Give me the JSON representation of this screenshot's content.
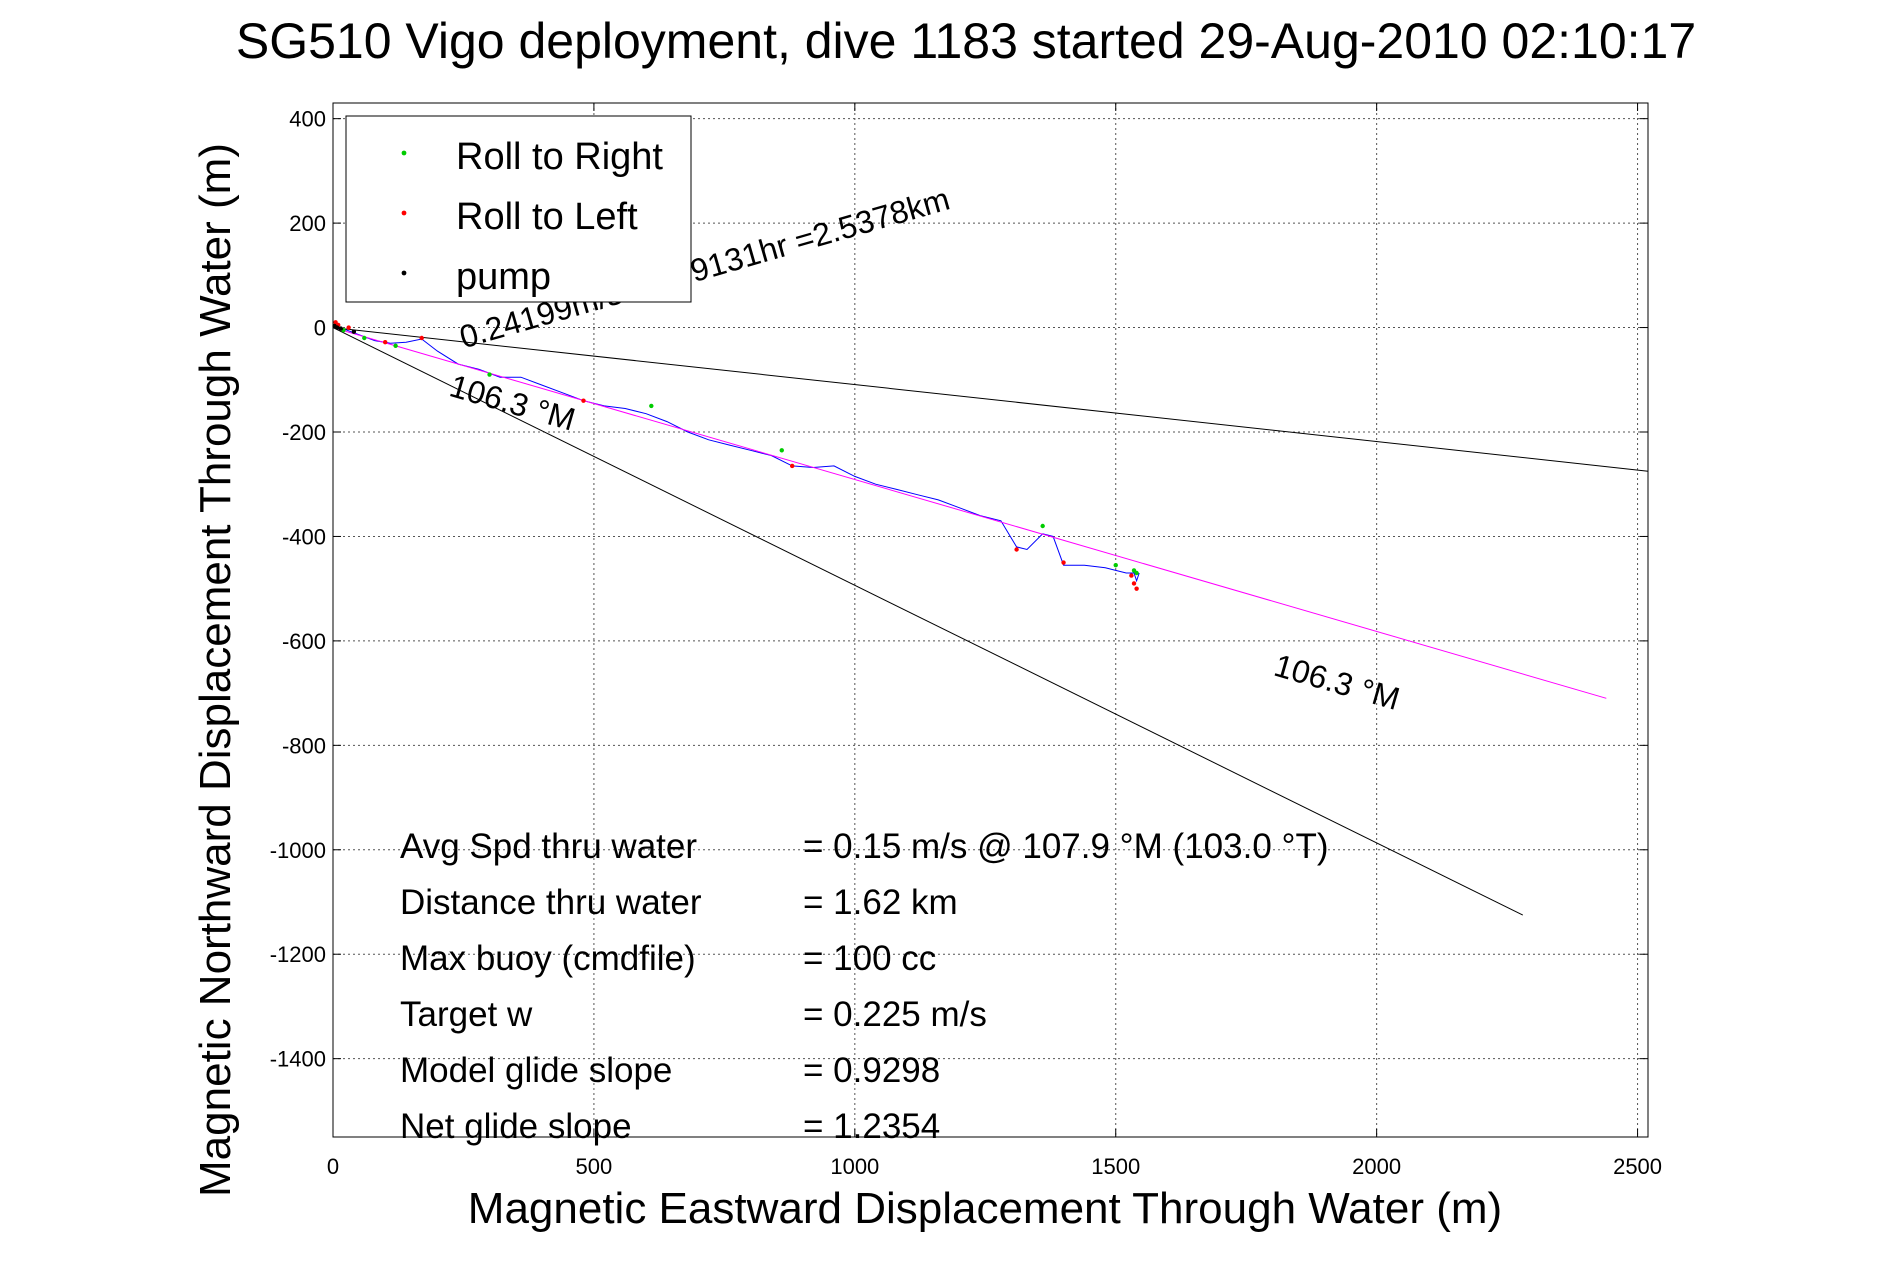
{
  "chart_data": {
    "type": "scatter",
    "title": "SG510 Vigo deployment, dive 1183 started 29-Aug-2010 02:10:17",
    "xlabel": "Magnetic Eastward Displacement Through Water (m)",
    "ylabel": "Magnetic Northward Displacement Through Water (m)",
    "xlim": [
      0,
      2520
    ],
    "ylim": [
      -1550,
      430
    ],
    "x_ticks": [
      0,
      500,
      1000,
      1500,
      2000,
      2500
    ],
    "y_ticks": [
      400,
      200,
      0,
      -200,
      -400,
      -600,
      -800,
      -1000,
      -1200,
      -1400
    ],
    "grid": true,
    "legend_position": "top-left",
    "legend": [
      {
        "label": "Roll to Right",
        "color": "#00cc00"
      },
      {
        "label": "Roll to Left",
        "color": "#ff0000"
      },
      {
        "label": "pump",
        "color": "#000000"
      }
    ],
    "series": [
      {
        "name": "Roll to Right",
        "color": "#00cc00",
        "marker": "dot",
        "points": [
          [
            20,
            -5
          ],
          [
            60,
            -20
          ],
          [
            120,
            -35
          ],
          [
            300,
            -90
          ],
          [
            610,
            -150
          ],
          [
            860,
            -235
          ],
          [
            1360,
            -380
          ],
          [
            1500,
            -455
          ],
          [
            1535,
            -465
          ],
          [
            1540,
            -470
          ]
        ]
      },
      {
        "name": "Roll to Left",
        "color": "#ff0000",
        "marker": "dot",
        "points": [
          [
            5,
            10
          ],
          [
            10,
            5
          ],
          [
            30,
            0
          ],
          [
            100,
            -28
          ],
          [
            170,
            -20
          ],
          [
            480,
            -140
          ],
          [
            880,
            -265
          ],
          [
            1310,
            -425
          ],
          [
            1400,
            -450
          ],
          [
            1530,
            -475
          ],
          [
            1535,
            -490
          ],
          [
            1540,
            -500
          ]
        ]
      },
      {
        "name": "pump",
        "color": "#000000",
        "marker": "dot",
        "points": [
          [
            3,
            3
          ],
          [
            8,
            0
          ],
          [
            15,
            -2
          ],
          [
            40,
            -8
          ]
        ]
      },
      {
        "name": "",
        "color": "#0000ff",
        "marker": "line",
        "points": [
          [
            0,
            5
          ],
          [
            40,
            -10
          ],
          [
            80,
            -25
          ],
          [
            110,
            -30
          ],
          [
            140,
            -28
          ],
          [
            170,
            -22
          ],
          [
            200,
            -45
          ],
          [
            240,
            -70
          ],
          [
            280,
            -80
          ],
          [
            320,
            -95
          ],
          [
            360,
            -95
          ],
          [
            400,
            -110
          ],
          [
            440,
            -125
          ],
          [
            480,
            -140
          ],
          [
            520,
            -150
          ],
          [
            560,
            -155
          ],
          [
            600,
            -165
          ],
          [
            640,
            -180
          ],
          [
            680,
            -200
          ],
          [
            720,
            -215
          ],
          [
            760,
            -225
          ],
          [
            800,
            -235
          ],
          [
            840,
            -245
          ],
          [
            880,
            -265
          ],
          [
            920,
            -268
          ],
          [
            960,
            -265
          ],
          [
            1000,
            -285
          ],
          [
            1040,
            -300
          ],
          [
            1080,
            -310
          ],
          [
            1120,
            -320
          ],
          [
            1160,
            -330
          ],
          [
            1200,
            -345
          ],
          [
            1240,
            -360
          ],
          [
            1280,
            -370
          ],
          [
            1310,
            -420
          ],
          [
            1330,
            -425
          ],
          [
            1360,
            -395
          ],
          [
            1380,
            -400
          ],
          [
            1400,
            -455
          ],
          [
            1440,
            -455
          ],
          [
            1480,
            -460
          ],
          [
            1500,
            -465
          ],
          [
            1520,
            -470
          ],
          [
            1535,
            -470
          ],
          [
            1540,
            -485
          ],
          [
            1545,
            -470
          ]
        ]
      },
      {
        "name": "",
        "color": "#ff00ff",
        "marker": "line",
        "points": [
          [
            0,
            0
          ],
          [
            2440,
            -710
          ]
        ]
      },
      {
        "name": "",
        "color": "#000000",
        "marker": "line",
        "points": [
          [
            0,
            0
          ],
          [
            2280,
            -1125
          ]
        ]
      },
      {
        "name": "",
        "color": "#000000",
        "marker": "line",
        "points": [
          [
            0,
            0
          ],
          [
            2520,
            -275
          ]
        ]
      }
    ],
    "annotations": [
      {
        "text": "0.24199m/s for2.9131hr =2.5378km",
        "x": 250,
        "y": -40,
        "angle_deg": -16
      },
      {
        "text": "106.3 °M",
        "x": 220,
        "y": -130,
        "angle_deg": 16
      },
      {
        "text": "106.3 °M",
        "x": 1800,
        "y": -665,
        "angle_deg": 16
      }
    ],
    "stats": [
      {
        "label": "Avg Spd thru water",
        "value": "=  0.15 m/s @ 107.9 °M (103.0 °T)"
      },
      {
        "label": "Distance thru water",
        "value": "=  1.62 km"
      },
      {
        "label": "Max buoy (cmdfile)",
        "value": "= 100 cc"
      },
      {
        "label": "Target w",
        "value": "= 0.225 m/s"
      },
      {
        "label": "Model glide slope",
        "value": "= 0.9298"
      },
      {
        "label": "Net glide slope",
        "value": "= 1.2354"
      }
    ]
  }
}
